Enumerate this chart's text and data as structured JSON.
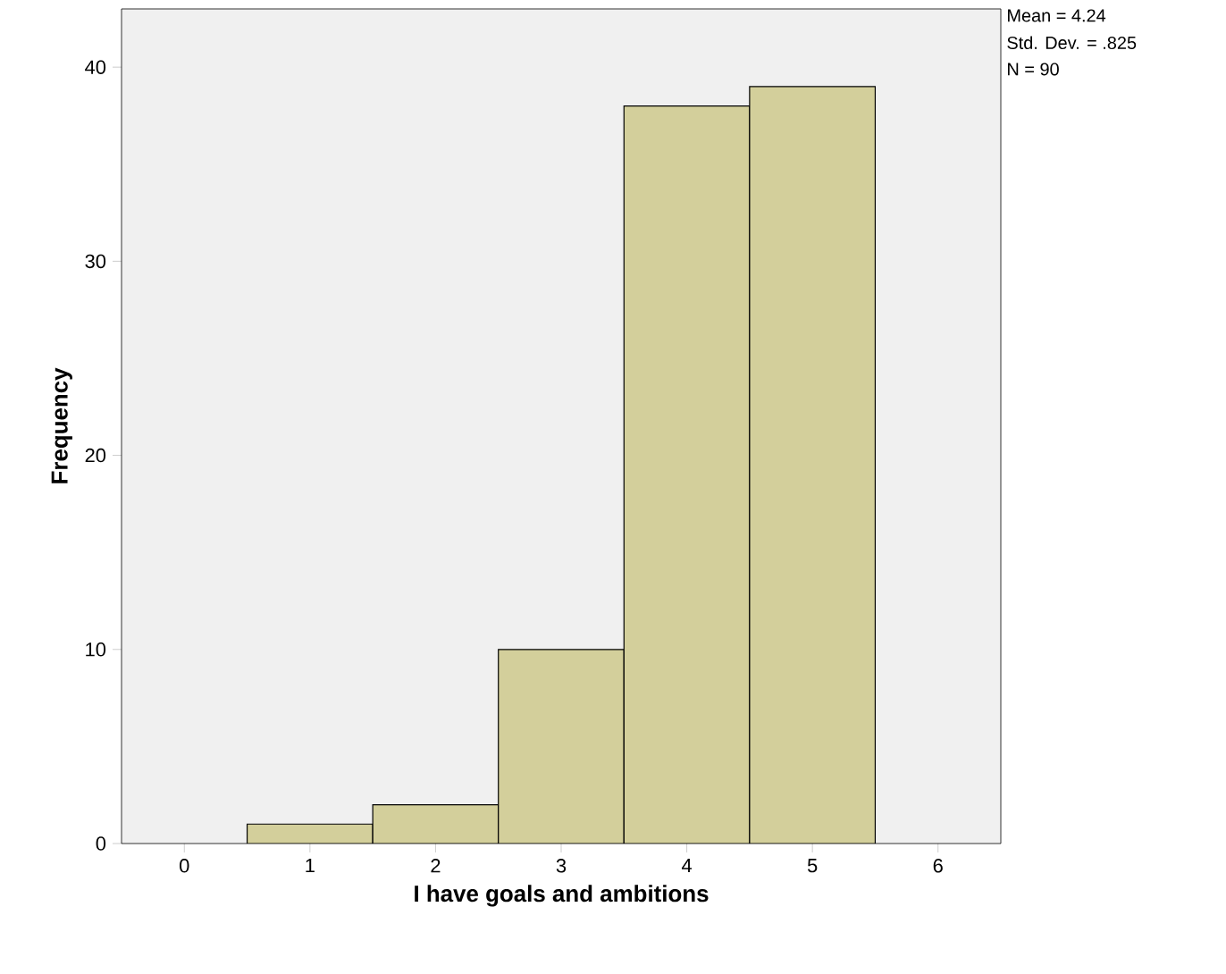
{
  "chart_data": {
    "type": "histogram",
    "xlabel": "I have goals and ambitions",
    "ylabel": "Frequency",
    "bins": [
      0.5,
      1.5,
      2.5,
      3.5,
      4.5,
      5.5
    ],
    "values": [
      1,
      2,
      10,
      38,
      39
    ],
    "color": "#d3cf9b",
    "xlim": [
      -0.5,
      6.5
    ],
    "xticks": [
      0,
      1,
      2,
      3,
      4,
      5,
      6
    ],
    "ylim": [
      0,
      43
    ],
    "yticks": [
      0,
      10,
      20,
      30,
      40
    ],
    "grid": false,
    "annotations": [
      "Mean = 4.24",
      "Std. Dev. = .825",
      "N = 90"
    ]
  }
}
